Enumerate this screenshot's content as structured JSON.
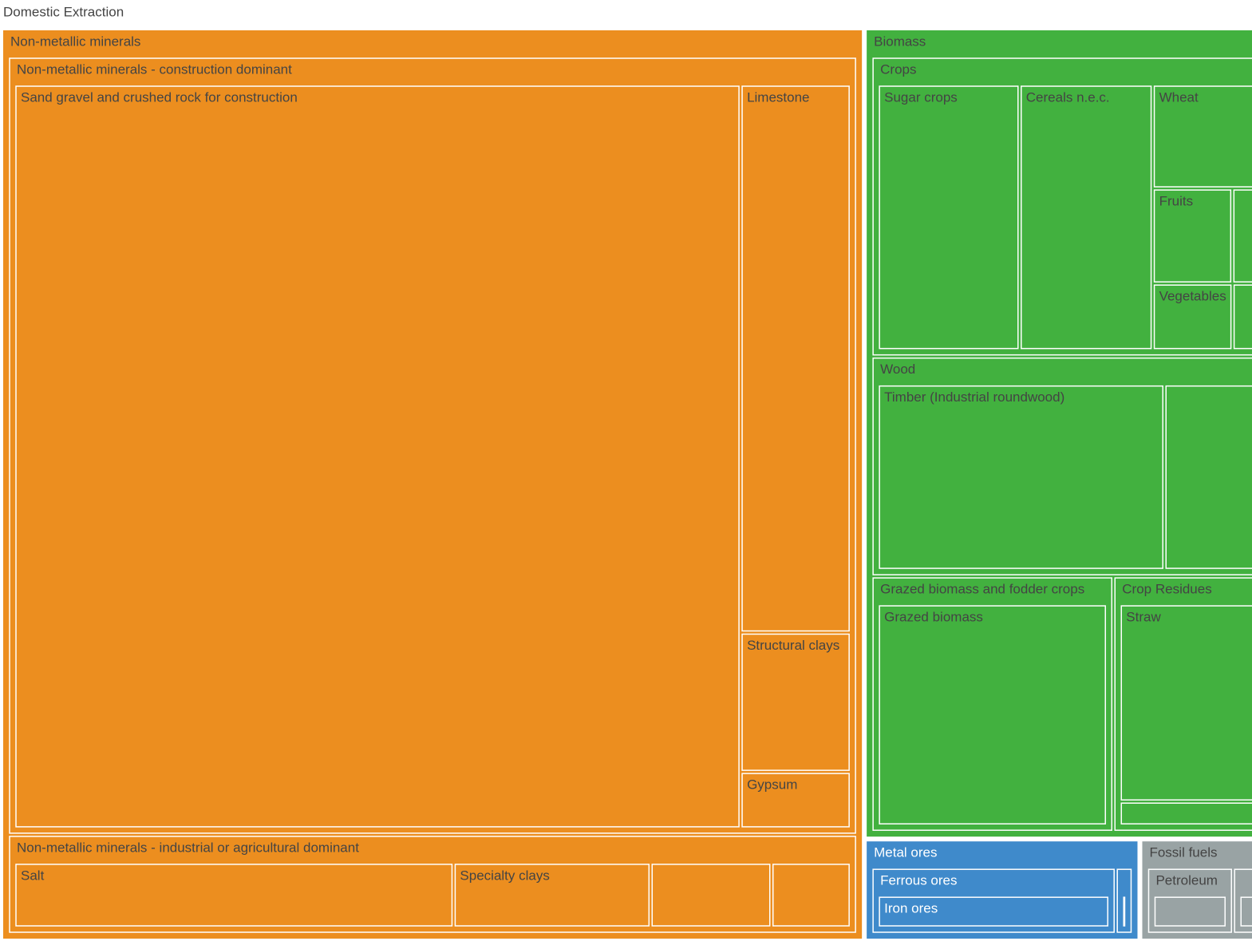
{
  "chart_data": {
    "type": "treemap",
    "title": "Domestic Extraction",
    "nodes": [
      {
        "name": "Non-metallic minerals",
        "color": "#ec8e1f",
        "children": [
          {
            "name": "Non-metallic minerals - construction dominant",
            "children": [
              {
                "name": "Sand gravel and crushed rock for construction",
                "value": 838
              },
              {
                "name": "Limestone",
                "value": 92
              },
              {
                "name": "Structural clays",
                "value": 23
              },
              {
                "name": "Gypsum",
                "value": 9
              }
            ]
          },
          {
            "name": "Non-metallic minerals - industrial or agricultural dominant",
            "children": [
              {
                "name": "Salt",
                "value": 63
              },
              {
                "name": "Specialty clays",
                "value": 28
              },
              {
                "name": null,
                "value": 17
              },
              {
                "name": null,
                "value": 11
              }
            ]
          }
        ]
      },
      {
        "name": "Biomass",
        "color": "#42b13f",
        "children": [
          {
            "name": "Crops",
            "children": [
              {
                "name": "Sugar crops",
                "value": 64
              },
              {
                "name": "Cereals n.e.c.",
                "value": 60
              },
              {
                "name": "Wheat",
                "value": 26
              },
              {
                "name": null,
                "value": 20
              },
              {
                "name": "Fruits",
                "value": 13
              },
              {
                "name": null,
                "value": 16
              },
              {
                "name": null,
                "value": 13
              },
              {
                "name": "Vegetables",
                "value": 9
              },
              {
                "name": null,
                "value": 12
              },
              {
                "name": null,
                "value": 8
              }
            ]
          },
          {
            "name": "Wood",
            "children": [
              {
                "name": "Timber (Industrial roundwood)",
                "value": 95
              },
              {
                "name": null,
                "value": 81
              }
            ]
          },
          {
            "name": "Grazed biomass and fodder crops",
            "children": [
              {
                "name": "Grazed biomass",
                "value": 91
              }
            ]
          },
          {
            "name": "Crop Residues",
            "children": [
              {
                "name": "Straw",
                "value": 103
              },
              {
                "name": null,
                "value": 11
              }
            ]
          }
        ]
      },
      {
        "name": "Metal ores",
        "color": "#3f8acb",
        "children": [
          {
            "name": "Ferrous ores",
            "children": [
              {
                "name": "Iron ores",
                "value": 35
              }
            ]
          },
          {
            "name": null,
            "children": [
              {
                "name": null,
                "value": 2
              }
            ]
          }
        ]
      },
      {
        "name": "Fossil fuels",
        "color": "#99a3a4",
        "children": [
          {
            "name": "Petroleum",
            "children": [
              {
                "name": null,
                "value": 12
              }
            ]
          },
          {
            "name": null,
            "children": [
              {
                "name": null,
                "value": 26
              }
            ]
          }
        ]
      }
    ]
  }
}
